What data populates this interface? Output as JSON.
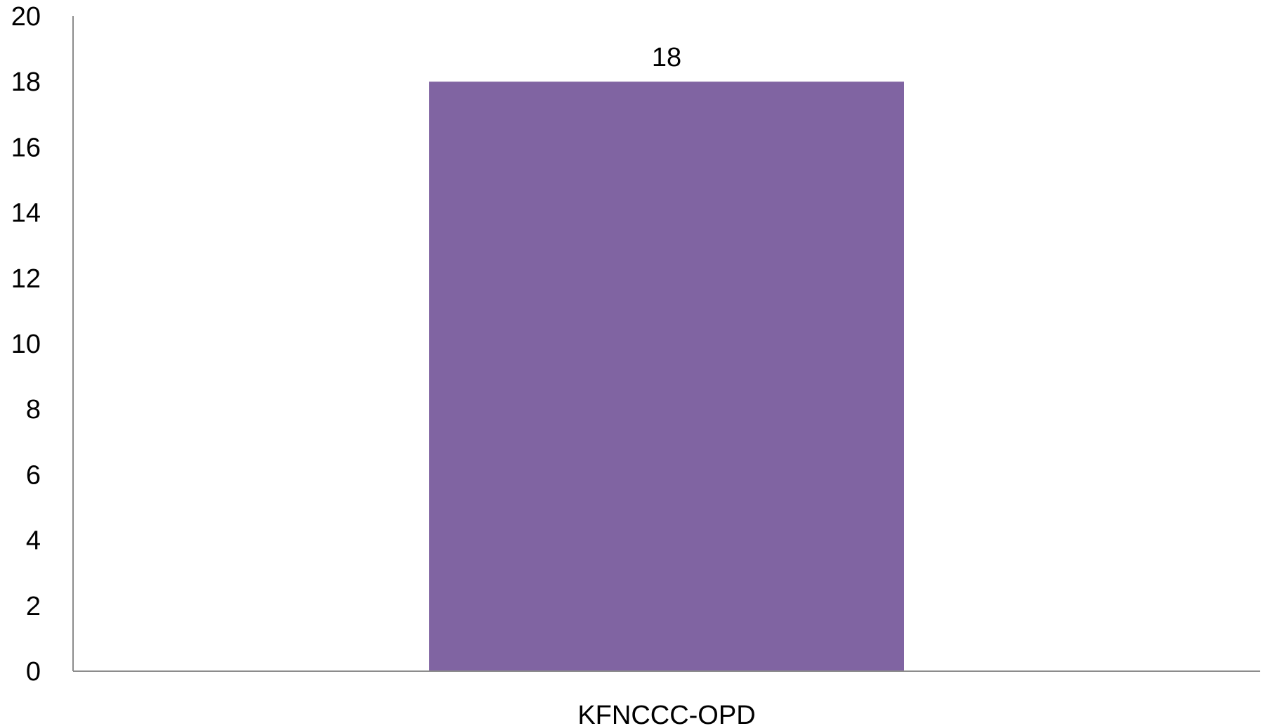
{
  "chart_data": {
    "type": "bar",
    "categories": [
      "KFNCCC-OPD"
    ],
    "values": [
      18
    ],
    "data_labels": [
      "18"
    ],
    "title": "",
    "xlabel": "",
    "ylabel": "",
    "ylim": [
      0,
      20
    ],
    "yticks": [
      0,
      2,
      4,
      6,
      8,
      10,
      12,
      14,
      16,
      18,
      20
    ],
    "grid": false,
    "legend": "none",
    "bar_color": "#8064a2"
  }
}
